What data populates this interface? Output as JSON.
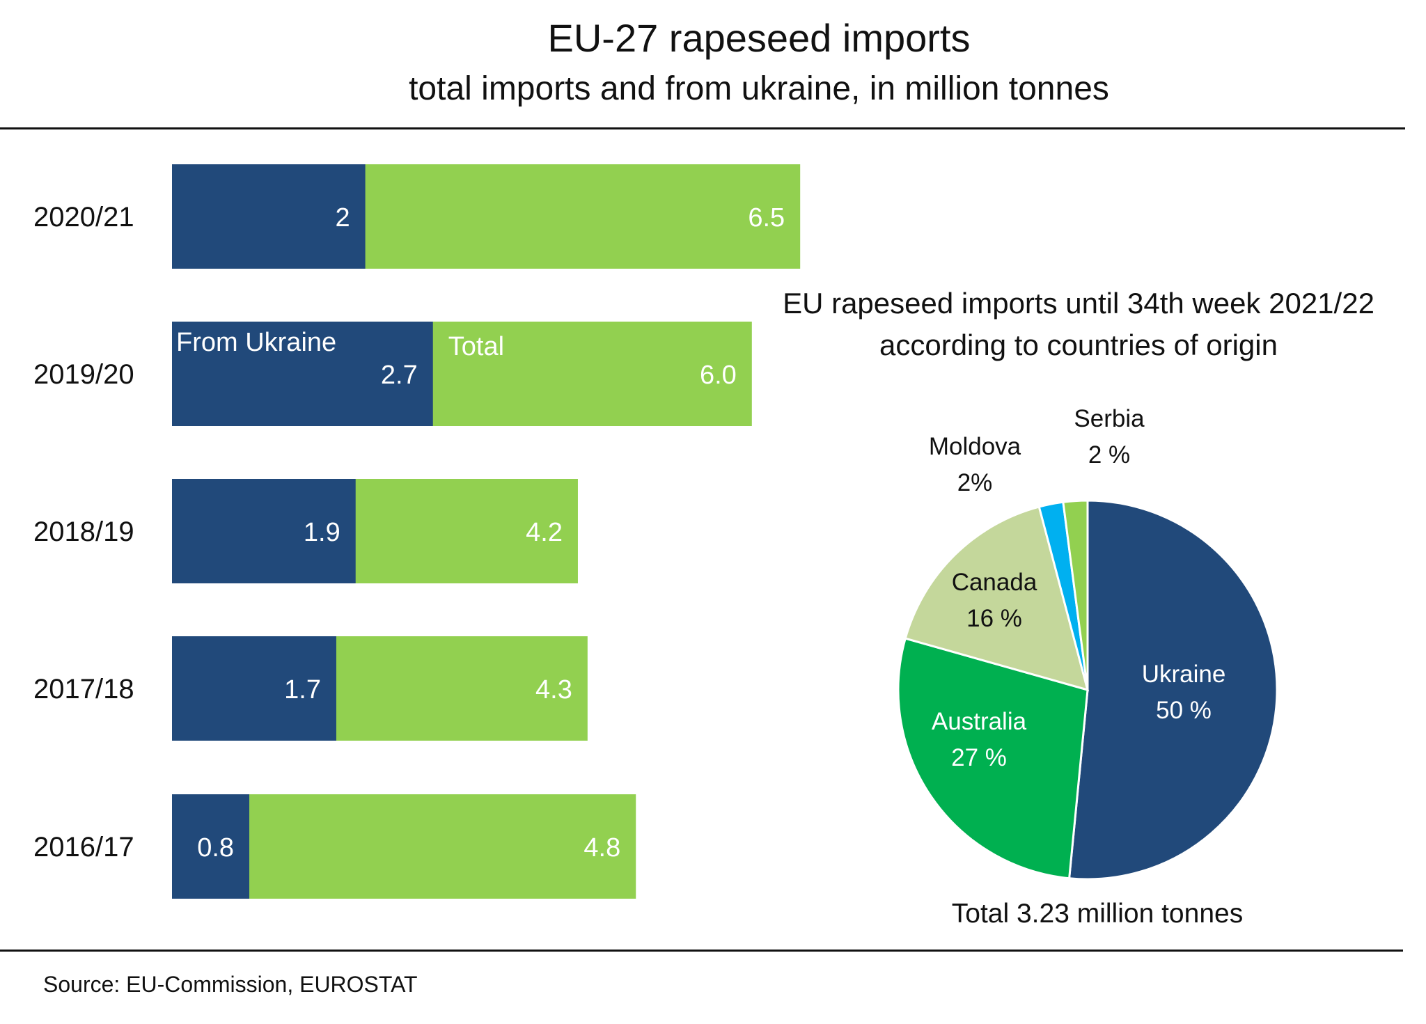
{
  "header": {
    "title": "EU-27 rapeseed imports",
    "subtitle": "total imports and from ukraine, in million tonnes"
  },
  "source": "Source:  EU-Commission, EUROSTAT",
  "colors": {
    "ukraine_bar": "#21497a",
    "total_bar": "#92d050"
  },
  "chart_data": [
    {
      "type": "bar",
      "orientation": "horizontal",
      "title": "EU-27 rapeseed imports",
      "subtitle": "total imports and from ukraine, in million tonnes",
      "categories": [
        "2020/21",
        "2019/20",
        "2018/19",
        "2017/18",
        "2016/17"
      ],
      "series": [
        {
          "name": "From Ukraine",
          "values": [
            2,
            2.7,
            1.9,
            1.7,
            0.8
          ],
          "labels": [
            "2",
            "2.7",
            "1.9",
            "1.7",
            "0.8"
          ],
          "color": "#21497a"
        },
        {
          "name": "Total",
          "values": [
            6.5,
            6.0,
            4.2,
            4.3,
            4.8
          ],
          "labels": [
            "6.5",
            "6.0",
            "4.2",
            "4.3",
            "4.8"
          ],
          "color": "#92d050"
        }
      ],
      "legend": {
        "placement": "inside-bar-2019/20",
        "entries": [
          "From Ukraine",
          "Total"
        ]
      },
      "xlim": [
        0,
        6.5
      ],
      "grid": false
    },
    {
      "type": "pie",
      "title_lines": [
        "EU rapeseed imports until 34th week 2021/22",
        "according to countries of origin"
      ],
      "slices": [
        {
          "name": "Ukraine",
          "value": 50,
          "label": "50 %",
          "color": "#21497a",
          "text_color": "#ffffff"
        },
        {
          "name": "Australia",
          "value": 27,
          "label": "27 %",
          "color": "#00b050",
          "text_color": "#ffffff"
        },
        {
          "name": "Canada",
          "value": 16,
          "label": "16 %",
          "color": "#c4d79b",
          "text_color": "#111111"
        },
        {
          "name": "Moldova",
          "value": 2,
          "label": "2%",
          "color": "#00b0f0",
          "text_color": "#111111"
        },
        {
          "name": "Serbia",
          "value": 2,
          "label": "2 %",
          "color": "#92d050",
          "text_color": "#111111"
        }
      ],
      "total_label": "Total 3.23 million tonnes"
    }
  ]
}
